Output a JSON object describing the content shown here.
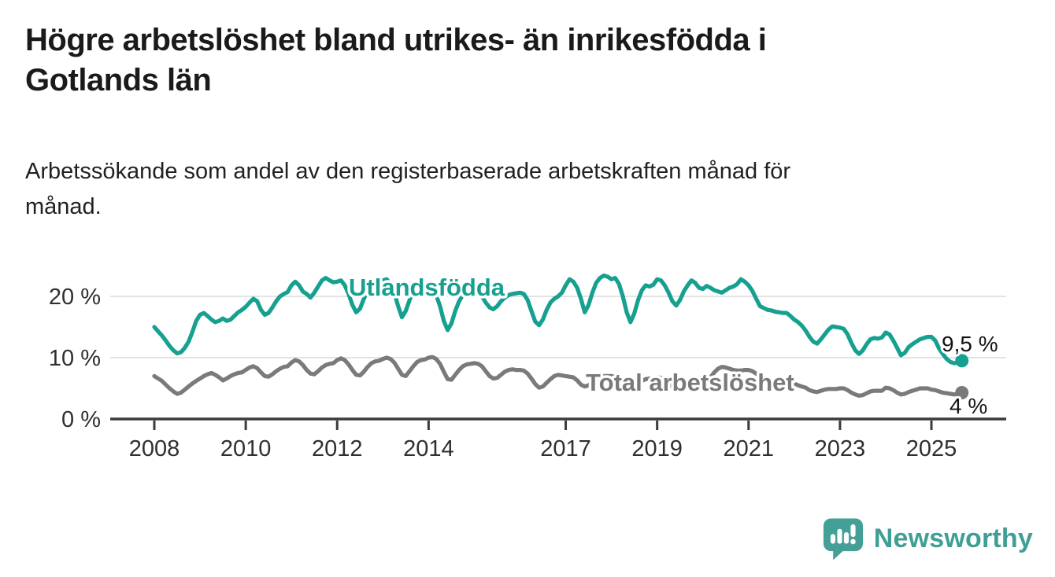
{
  "header": {
    "title": "Högre arbetslöshet bland utrikes- än inrikesfödda i\nGotlands län",
    "subtitle": "Arbetssökande som andel av den registerbaserade arbetskraften månad för\nmånad."
  },
  "footer": {
    "brand": "Newsworthy"
  },
  "colors": {
    "accent_teal": "#16a08f",
    "line_gray": "#7a7a7a",
    "axis": "#3b3b3b",
    "gridline": "#dadada",
    "logo_teal": "#44a096"
  },
  "chart_data": {
    "type": "line",
    "title": "Högre arbetslöshet bland utrikes- än inrikesfödda i Gotlands län",
    "subtitle": "Arbetssökande som andel av den registerbaserade arbetskraften månad för månad.",
    "xlabel": "",
    "ylabel": "",
    "x_start": "2008-01",
    "x_end": "2025-09",
    "frequency": "monthly",
    "ylim": [
      0,
      24
    ],
    "grid": "horizontal",
    "legend_position": "inline-labels",
    "yticks": [
      {
        "value": 0,
        "label": "0 %"
      },
      {
        "value": 10,
        "label": "10 %"
      },
      {
        "value": 20,
        "label": "20 %"
      }
    ],
    "xticks": [
      2008,
      2010,
      2012,
      2014,
      2017,
      2019,
      2021,
      2023,
      2025
    ],
    "series": [
      {
        "id": "utlandsfodda",
        "name": "Utlandsfödda",
        "color": "#16a08f",
        "end_label": "9,5 %",
        "end_value": 9.5,
        "values": [
          15.0,
          14.3,
          13.6,
          12.8,
          11.9,
          11.2,
          10.7,
          10.9,
          11.6,
          12.6,
          14.2,
          16.0,
          17.0,
          17.3,
          16.8,
          16.2,
          15.8,
          16.0,
          16.4,
          16.0,
          16.2,
          16.8,
          17.4,
          17.8,
          18.3,
          19.0,
          19.6,
          19.2,
          17.8,
          17.0,
          17.3,
          18.2,
          19.2,
          20.0,
          20.4,
          20.7,
          21.8,
          22.4,
          21.8,
          20.8,
          20.4,
          19.8,
          20.6,
          21.6,
          22.6,
          23.0,
          22.6,
          22.3,
          22.4,
          22.6,
          21.8,
          20.4,
          18.6,
          17.4,
          18.0,
          19.6,
          20.8,
          21.4,
          21.8,
          22.0,
          22.6,
          22.8,
          22.0,
          20.6,
          18.4,
          16.6,
          17.6,
          19.4,
          20.8,
          21.4,
          21.6,
          21.3,
          21.4,
          21.0,
          20.2,
          18.4,
          16.0,
          14.5,
          15.6,
          17.6,
          19.2,
          20.2,
          20.6,
          20.8,
          21.0,
          20.8,
          20.0,
          19.0,
          18.2,
          17.9,
          18.4,
          19.2,
          19.8,
          20.2,
          20.4,
          20.5,
          20.6,
          20.4,
          19.4,
          17.6,
          15.9,
          15.3,
          16.2,
          17.8,
          19.0,
          19.6,
          20.0,
          20.6,
          21.8,
          22.8,
          22.4,
          21.4,
          19.6,
          17.4,
          18.6,
          20.6,
          22.2,
          23.0,
          23.4,
          23.2,
          22.8,
          23.0,
          22.0,
          20.0,
          17.4,
          15.8,
          17.2,
          19.4,
          21.0,
          21.8,
          21.6,
          21.9,
          22.8,
          22.6,
          21.8,
          20.6,
          19.2,
          18.5,
          19.4,
          20.8,
          21.8,
          22.6,
          22.2,
          21.4,
          21.2,
          21.7,
          21.4,
          21.0,
          20.8,
          20.6,
          21.0,
          21.4,
          21.6,
          22.0,
          22.8,
          22.4,
          21.8,
          20.9,
          19.6,
          18.4,
          18.1,
          17.8,
          17.7,
          17.5,
          17.4,
          17.3,
          17.3,
          16.8,
          16.2,
          15.8,
          15.2,
          14.4,
          13.4,
          12.6,
          12.3,
          13.0,
          13.8,
          14.6,
          15.1,
          15.0,
          14.9,
          14.7,
          13.8,
          12.4,
          11.2,
          10.6,
          11.2,
          12.2,
          13.0,
          13.2,
          13.1,
          13.3,
          14.1,
          13.8,
          12.8,
          11.6,
          10.4,
          10.8,
          11.7,
          12.2,
          12.6,
          13.0,
          13.2,
          13.4,
          13.4,
          12.8,
          11.5,
          10.6,
          9.8,
          9.3,
          9.1,
          9.2,
          9.5
        ]
      },
      {
        "id": "total-arbetsloshet",
        "name": "Total arbetslöshet",
        "color": "#7a7a7a",
        "end_label": "4 %",
        "end_value": 4.3,
        "values": [
          7.0,
          6.6,
          6.2,
          5.6,
          5.0,
          4.5,
          4.1,
          4.3,
          4.8,
          5.3,
          5.8,
          6.2,
          6.6,
          7.0,
          7.3,
          7.5,
          7.2,
          6.8,
          6.3,
          6.6,
          7.0,
          7.3,
          7.5,
          7.6,
          8.0,
          8.4,
          8.6,
          8.3,
          7.6,
          7.0,
          6.9,
          7.3,
          7.8,
          8.2,
          8.5,
          8.6,
          9.2,
          9.6,
          9.4,
          8.8,
          8.0,
          7.4,
          7.3,
          7.8,
          8.4,
          8.8,
          9.0,
          9.1,
          9.6,
          9.9,
          9.6,
          8.9,
          8.0,
          7.2,
          7.1,
          7.7,
          8.5,
          9.1,
          9.4,
          9.5,
          9.8,
          10.0,
          9.8,
          9.2,
          8.2,
          7.2,
          7.0,
          7.8,
          8.6,
          9.3,
          9.6,
          9.7,
          10.0,
          10.1,
          9.8,
          9.0,
          7.7,
          6.5,
          6.4,
          7.2,
          8.0,
          8.6,
          8.9,
          9.0,
          9.1,
          9.0,
          8.6,
          7.8,
          7.0,
          6.6,
          6.7,
          7.2,
          7.7,
          8.0,
          8.1,
          8.0,
          8.0,
          7.9,
          7.4,
          6.6,
          5.7,
          5.1,
          5.3,
          5.9,
          6.5,
          7.0,
          7.2,
          7.1,
          7.0,
          6.9,
          6.8,
          6.3,
          5.6,
          5.3,
          5.5,
          6.0,
          6.5,
          6.8,
          7.0,
          7.0,
          7.0,
          6.9,
          6.6,
          6.0,
          5.4,
          5.2,
          5.4,
          5.8,
          6.2,
          6.5,
          6.6,
          6.6,
          6.8,
          6.7,
          6.4,
          5.9,
          5.3,
          5.0,
          5.2,
          5.7,
          6.1,
          6.4,
          6.4,
          6.4,
          6.6,
          6.6,
          6.8,
          7.6,
          8.2,
          8.5,
          8.4,
          8.2,
          8.0,
          7.9,
          7.9,
          8.0,
          8.0,
          7.8,
          7.4,
          7.0,
          6.6,
          6.3,
          6.2,
          6.2,
          6.3,
          6.3,
          6.2,
          6.0,
          5.8,
          5.5,
          5.3,
          5.1,
          4.7,
          4.5,
          4.4,
          4.6,
          4.8,
          4.9,
          4.9,
          4.9,
          5.0,
          5.0,
          4.7,
          4.3,
          4.0,
          3.8,
          3.9,
          4.2,
          4.5,
          4.6,
          4.6,
          4.6,
          5.1,
          5.0,
          4.7,
          4.3,
          4.0,
          4.1,
          4.4,
          4.6,
          4.8,
          5.0,
          5.0,
          5.0,
          4.8,
          4.7,
          4.5,
          4.3,
          4.2,
          4.1,
          4.0,
          4.1,
          4.3
        ]
      }
    ]
  }
}
